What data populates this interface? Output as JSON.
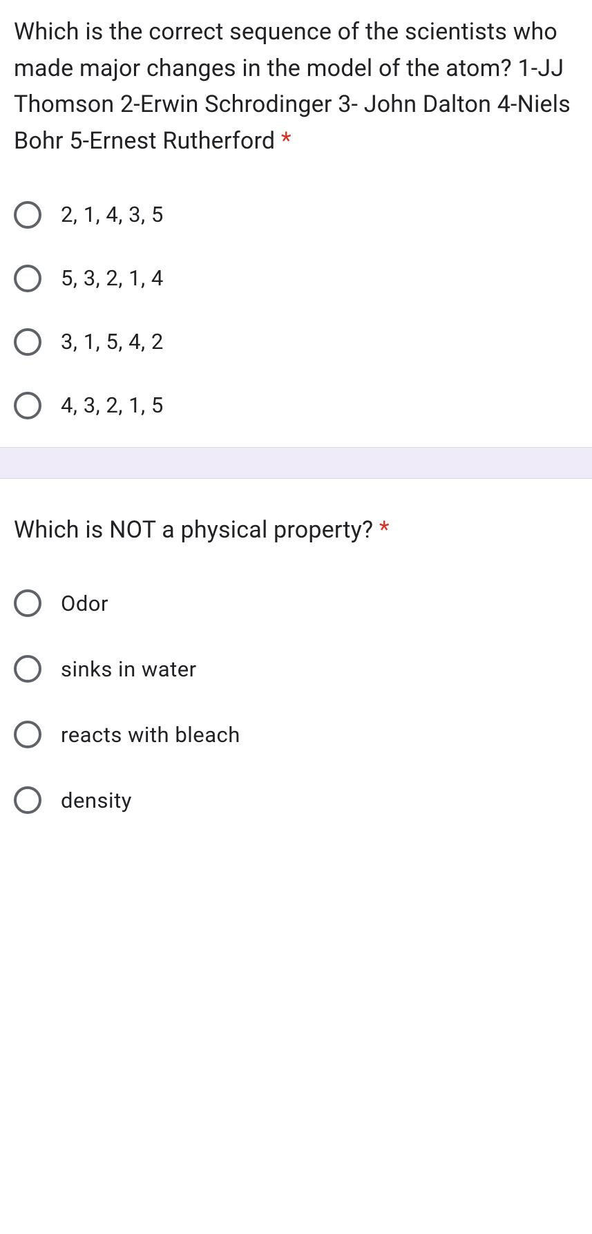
{
  "questions": [
    {
      "text": "Which is the correct sequence of the scientists who made major changes in the model of the atom? 1-JJ Thomson 2-Erwin Schrodinger 3- John Dalton 4-Niels Bohr 5-Ernest Rutherford ",
      "required": "*",
      "options": [
        "2, 1, 4, 3, 5",
        "5, 3, 2, 1, 4",
        "3, 1, 5, 4, 2",
        "4, 3, 2, 1, 5"
      ]
    },
    {
      "text": "Which is NOT a physical property? ",
      "required": "*",
      "options": [
        "Odor",
        "sinks in water",
        "reacts with bleach",
        "density"
      ]
    }
  ],
  "colors": {
    "text": "#202124",
    "required": "#d93025",
    "radio_border": "#5f6368",
    "gap_bg": "#f0ebf8",
    "gap_border": "#dadce0",
    "card_bg": "#ffffff"
  }
}
